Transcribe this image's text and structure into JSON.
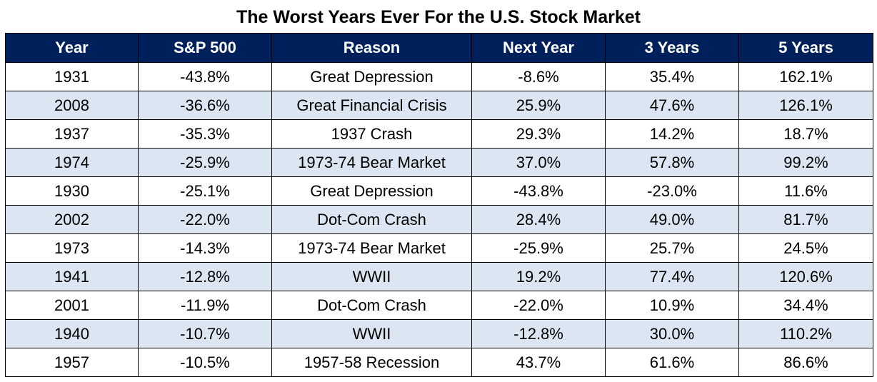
{
  "chart_data": {
    "type": "table",
    "title": "The Worst Years Ever For the U.S. Stock Market",
    "columns": [
      "Year",
      "S&P 500",
      "Reason",
      "Next Year",
      "3 Years",
      "5 Years"
    ],
    "rows": [
      [
        "1931",
        "-43.8%",
        "Great Depression",
        "-8.6%",
        "35.4%",
        "162.1%"
      ],
      [
        "2008",
        "-36.6%",
        "Great Financial Crisis",
        "25.9%",
        "47.6%",
        "126.1%"
      ],
      [
        "1937",
        "-35.3%",
        "1937 Crash",
        "29.3%",
        "14.2%",
        "18.7%"
      ],
      [
        "1974",
        "-25.9%",
        "1973-74 Bear Market",
        "37.0%",
        "57.8%",
        "99.2%"
      ],
      [
        "1930",
        "-25.1%",
        "Great Depression",
        "-43.8%",
        "-23.0%",
        "11.6%"
      ],
      [
        "2002",
        "-22.0%",
        "Dot-Com Crash",
        "28.4%",
        "49.0%",
        "81.7%"
      ],
      [
        "1973",
        "-14.3%",
        "1973-74 Bear Market",
        "-25.9%",
        "25.7%",
        "24.5%"
      ],
      [
        "1941",
        "-12.8%",
        "WWII",
        "19.2%",
        "77.4%",
        "120.6%"
      ],
      [
        "2001",
        "-11.9%",
        "Dot-Com Crash",
        "-22.0%",
        "10.9%",
        "34.4%"
      ],
      [
        "1940",
        "-10.7%",
        "WWII",
        "-12.8%",
        "30.0%",
        "110.2%"
      ],
      [
        "1957",
        "-10.5%",
        "1957-58 Recession",
        "43.7%",
        "61.6%",
        "86.6%"
      ]
    ]
  },
  "colors": {
    "header_background": "#00205c",
    "header_text": "#ffffff",
    "stripe_row": "#dce6f2",
    "plain_row": "#ffffff",
    "border": "#000000"
  }
}
